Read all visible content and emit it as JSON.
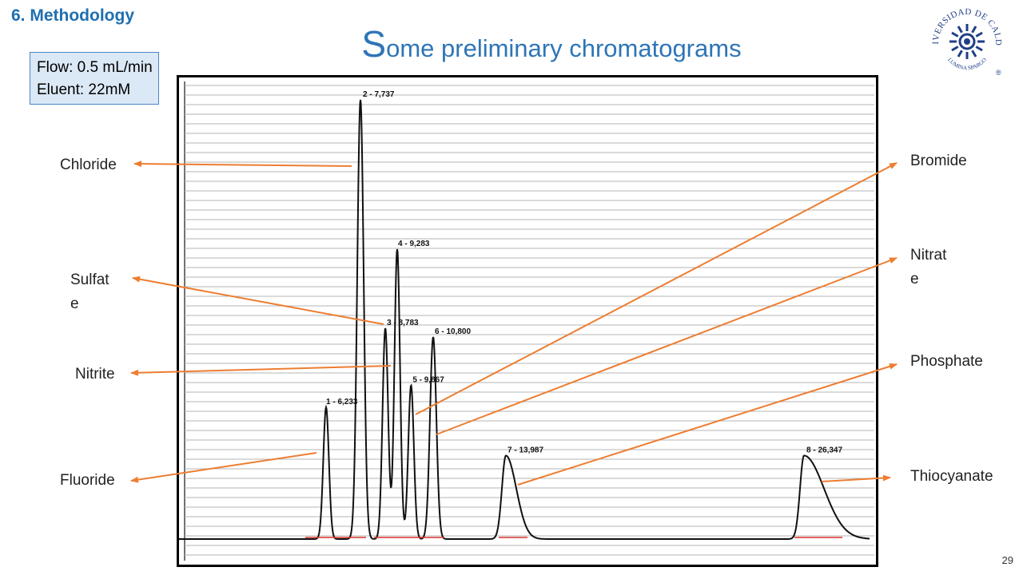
{
  "slide": {
    "section": "6. Methodology",
    "title_first": "S",
    "title_rest": "ome preliminary  chromatograms",
    "flow": "Flow: 0.5 mL/min",
    "eluent": "Eluent: 22mM",
    "page_number": "29",
    "logo_text": "UNIVERSIDAD DE CALDAS",
    "logo_motto": "LUMINA  SPARGO",
    "logo_mark": "®"
  },
  "labels": {
    "chloride": "Chloride",
    "sulfate_1": "Sulfat",
    "sulfate_2": "e",
    "nitrite": "Nitrite",
    "fluoride": "Fluoride",
    "bromide": "Bromide",
    "nitrate_1": "Nitrat",
    "nitrate_2": "e",
    "phosphate": "Phosphate",
    "thiocyanate": "Thiocyanate"
  },
  "colors": {
    "accent": "#2e75b6",
    "arrow": "#ed7d31",
    "baseline_marks": "#d9342b"
  },
  "chart_data": {
    "type": "line",
    "title": "",
    "xlabel": "",
    "ylabel": "",
    "grid": true,
    "peaks": [
      {
        "label": "1 - 6,233",
        "retention_time": 6.233,
        "relative_height": 0.3
      },
      {
        "label": "2 - 7,737",
        "retention_time": 7.737,
        "relative_height": 1.0
      },
      {
        "label": "3 - 8,783",
        "retention_time": 8.783,
        "relative_height": 0.48
      },
      {
        "label": "4 - 9,283",
        "retention_time": 9.283,
        "relative_height": 0.66
      },
      {
        "label": "5 - 9,867",
        "retention_time": 9.867,
        "relative_height": 0.35
      },
      {
        "label": "6 - 10,800",
        "retention_time": 10.8,
        "relative_height": 0.46
      },
      {
        "label": "7 - 13,987",
        "retention_time": 13.987,
        "relative_height": 0.19
      },
      {
        "label": "8 - 26,347",
        "retention_time": 26.347,
        "relative_height": 0.19
      }
    ]
  }
}
